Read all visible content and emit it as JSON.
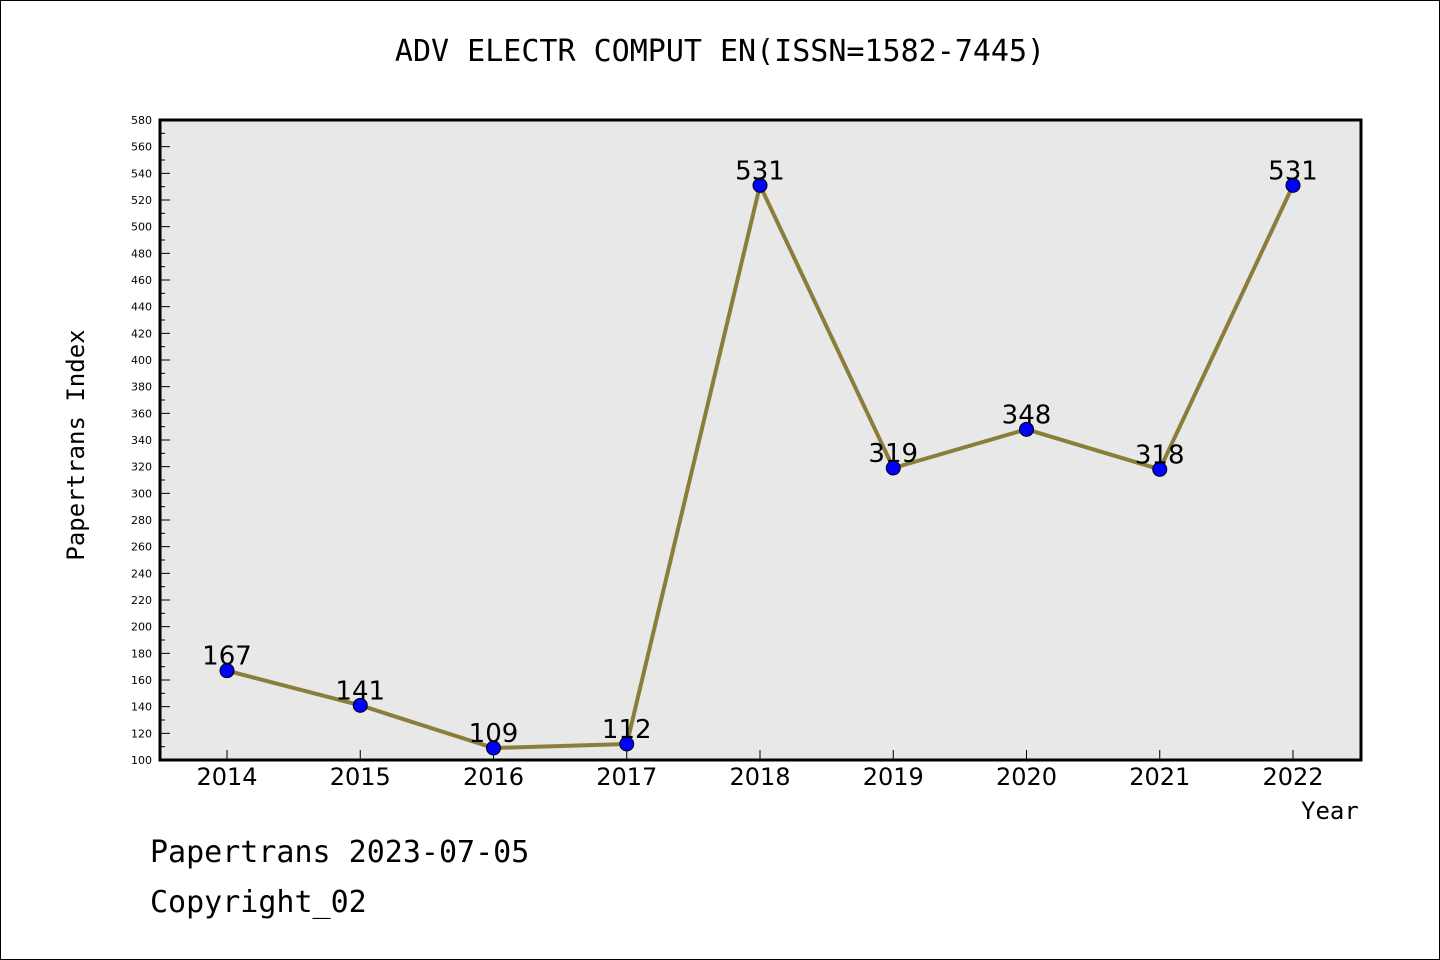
{
  "chart_data": {
    "type": "line",
    "title": "ADV ELECTR COMPUT EN(ISSN=1582-7445)",
    "xlabel": "Year",
    "ylabel": "Papertrans Index",
    "categories": [
      "2014",
      "2015",
      "2016",
      "2017",
      "2018",
      "2019",
      "2020",
      "2021",
      "2022"
    ],
    "values": [
      167,
      141,
      109,
      112,
      531,
      319,
      348,
      318,
      531
    ],
    "data_labels": [
      "167",
      "141",
      "109",
      "112",
      "531",
      "319",
      "348",
      "318",
      "531"
    ],
    "ylim": [
      100,
      580
    ],
    "yticks": [
      100,
      120,
      140,
      160,
      180,
      200,
      220,
      240,
      260,
      280,
      300,
      320,
      340,
      360,
      380,
      400,
      420,
      440,
      460,
      480,
      500,
      520,
      540,
      560,
      580
    ],
    "grid": false,
    "line_color": "#8B7D3A",
    "marker_color": "#0000FF",
    "plot_background": "#E8E8E8"
  },
  "footer": {
    "date_text": "Papertrans 2023-07-05",
    "copyright_text": "Copyright_02"
  }
}
